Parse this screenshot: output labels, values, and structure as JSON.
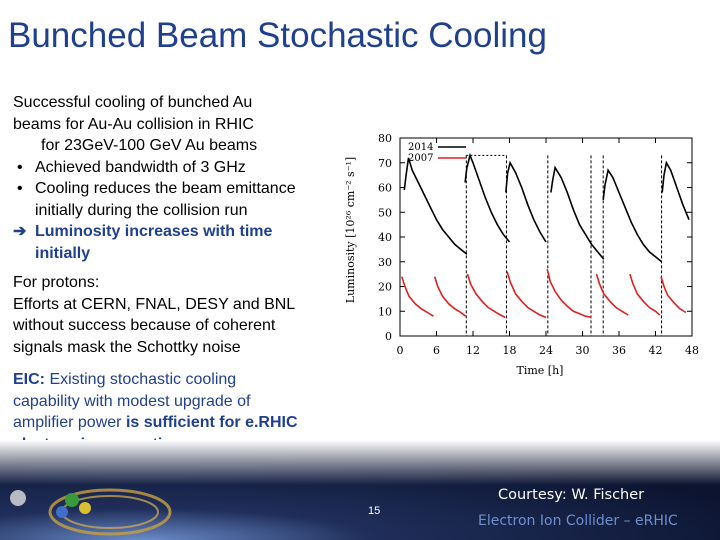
{
  "slide": {
    "title": "Bunched Beam Stochastic Cooling",
    "left_text": {
      "line1": "Successful cooling of bunched Au",
      "line2": "beams for Au-Au collision  in RHIC",
      "line3": "for 23GeV-100 GeV Au beams",
      "bullet1": "Achieved bandwidth of 3 GHz",
      "bullet2_a": "Cooling reduces the beam emittance",
      "bullet2_b": "initially during the collision run",
      "arrow_a": "Luminosity increases with time",
      "arrow_b": "initially",
      "bullet_char": "•",
      "arrow_char": "➔"
    },
    "protons": {
      "line1": "For protons:",
      "line2": "Efforts at CERN, FNAL, DESY and BNL",
      "line3": "without success because of coherent",
      "line4": "signals mask the Schottky noise"
    },
    "eic": {
      "label": "EIC:",
      "line1_rest": " Existing stochastic cooling",
      "line2": "capability with modest upgrade of",
      "line3_plain": "amplifier power ",
      "line3_bold": "is sufficient for e.RHIC",
      "line4": "electron-ion operation"
    },
    "footer": {
      "courtesy": "Courtesy: W. Fischer",
      "page_number": "15",
      "brand": "Electron Ion Collider – eRHIC"
    }
  },
  "chart_data": {
    "type": "line",
    "xlabel": "Time [h]",
    "ylabel": "Luminosity [10²⁶ cm⁻² s⁻¹]",
    "xlim": [
      0,
      48
    ],
    "ylim": [
      0,
      80
    ],
    "xticks": [
      0,
      6,
      12,
      18,
      24,
      30,
      36,
      42,
      48
    ],
    "yticks": [
      0,
      10,
      20,
      30,
      40,
      50,
      60,
      70,
      80
    ],
    "legend": [
      "2007",
      "2014"
    ],
    "legend_position": "top-left",
    "series": [
      {
        "name": "2014",
        "color": "#000000",
        "stores": [
          {
            "x": [
              0.7,
              1,
              1.4,
              2,
              3,
              4,
              5,
              6,
              7,
              8,
              9,
              10,
              11
            ],
            "y": [
              59,
              65,
              72,
              67,
              62,
              57,
              52,
              47,
              43,
              40,
              37,
              35,
              33
            ]
          },
          {
            "x": [
              10.7,
              11,
              11.5,
              12,
              13,
              14,
              15,
              16,
              17,
              18
            ],
            "y": [
              62,
              68,
              73,
              70,
              63,
              56,
              50,
              45,
              41,
              38
            ]
          },
          {
            "x": [
              17.4,
              17.7,
              18.1,
              19,
              20,
              21,
              22,
              23,
              24
            ],
            "y": [
              58,
              66,
              70,
              66,
              60,
              53,
              47,
              42,
              38
            ]
          },
          {
            "x": [
              24.8,
              25.1,
              25.5,
              26.5,
              27.5,
              28.5,
              29.5,
              30.5,
              31.5,
              32.5,
              33.5
            ],
            "y": [
              58,
              63,
              68,
              64,
              58,
              51,
              45,
              41,
              37,
              34,
              31
            ]
          },
          {
            "x": [
              33.4,
              33.7,
              34.2,
              35,
              36,
              37,
              38,
              39,
              40,
              41,
              42,
              43
            ],
            "y": [
              55,
              61,
              67,
              64,
              58,
              52,
              46,
              41,
              37,
              34,
              32,
              30
            ]
          },
          {
            "x": [
              43.1,
              43.4,
              43.8,
              44.5,
              45.5,
              46.5,
              47.5
            ],
            "y": [
              58,
              65,
              70,
              67,
              60,
              53,
              47
            ]
          }
        ]
      },
      {
        "name": "2007",
        "color": "#e02020",
        "stores": [
          {
            "x": [
              0.3,
              0.8,
              1.5,
              2.5,
              3.5,
              4.5,
              5.5
            ],
            "y": [
              24,
              20,
              16,
              13,
              11,
              9.5,
              8
            ]
          },
          {
            "x": [
              5.7,
              6.2,
              7,
              8,
              9,
              10,
              10.8
            ],
            "y": [
              24,
              20,
              16,
              13,
              11,
              9.5,
              8
            ]
          },
          {
            "x": [
              11.1,
              11.6,
              12.5,
              13.5,
              14.5,
              15.5,
              16.5,
              17.3
            ],
            "y": [
              25,
              21,
              17,
              14,
              11.5,
              10,
              8.5,
              7.5
            ]
          },
          {
            "x": [
              17.6,
              18.1,
              19,
              20,
              21,
              22,
              23,
              24
            ],
            "y": [
              26,
              22,
              17,
              14,
              11.5,
              10,
              8.5,
              7.5
            ]
          },
          {
            "x": [
              24.2,
              24.7,
              25.5,
              26.5,
              27.5,
              28.5,
              29.5,
              30.5,
              31.5
            ],
            "y": [
              27,
              22,
              18,
              14.5,
              12,
              10,
              9,
              8,
              7.5
            ]
          },
          {
            "x": [
              32.3,
              32.8,
              33.5,
              34.5,
              35.5,
              36.5,
              37.5
            ],
            "y": [
              25,
              21,
              17,
              14,
              11.5,
              10,
              8.5
            ]
          },
          {
            "x": [
              37.8,
              38.3,
              39,
              40,
              41,
              42,
              42.7
            ],
            "y": [
              25,
              21,
              17,
              14,
              11.5,
              10,
              8.5
            ]
          },
          {
            "x": [
              42.9,
              43.4,
              44,
              45,
              46,
              47
            ],
            "y": [
              24,
              20,
              16.5,
              13.5,
              11,
              9.5
            ]
          }
        ]
      }
    ],
    "markers": {
      "dashed_x": [
        10.9,
        17.5,
        24.3,
        31.4,
        33.4,
        43
      ],
      "peak_level_y": 73
    }
  }
}
